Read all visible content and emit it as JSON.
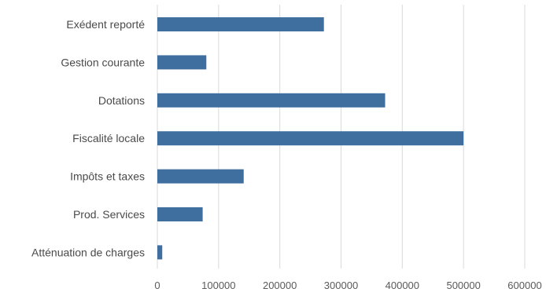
{
  "chart_data": {
    "type": "bar",
    "orientation": "horizontal",
    "categories": [
      "Exédent reporté",
      "Gestion courante",
      "Dotations",
      "Fiscalité locale",
      "Impôts et taxes",
      "Prod. Services",
      "Atténuation de charges"
    ],
    "values": [
      272000,
      80000,
      372000,
      500000,
      141000,
      74000,
      8000
    ],
    "xlim": [
      0,
      600000
    ],
    "xticks": [
      0,
      100000,
      200000,
      300000,
      400000,
      500000,
      600000
    ],
    "xtick_labels": [
      "0",
      "100000",
      "200000",
      "300000",
      "400000",
      "500000",
      "600000"
    ],
    "grid": "vertical",
    "bar_color": "#3f6f9f",
    "grid_color": "#d9d9d9",
    "title": "",
    "xlabel": "",
    "ylabel": ""
  }
}
